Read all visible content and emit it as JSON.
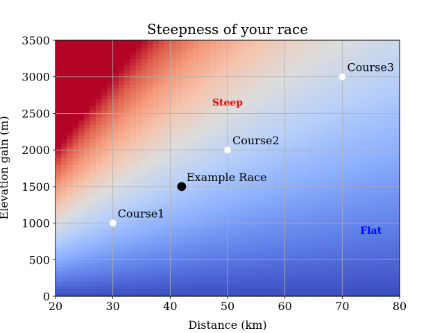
{
  "chart_data": {
    "type": "heatmap",
    "title": "Steepness of your race",
    "xlabel": "Distance (km)",
    "ylabel": "Elevation gain (m)",
    "xlim": [
      20,
      80
    ],
    "ylim": [
      0,
      3500
    ],
    "xticks": [
      20,
      30,
      40,
      50,
      60,
      70,
      80
    ],
    "yticks": [
      0,
      500,
      1000,
      1500,
      2000,
      2500,
      3000,
      3500
    ],
    "grid": true,
    "colormap": "coolwarm",
    "color_quantity": "elevation gain per km",
    "color_range": [
      0,
      100
    ],
    "points": [
      {
        "label": "Course1",
        "x": 30,
        "y": 1000,
        "color": "#ffffff"
      },
      {
        "label": "Course2",
        "x": 50,
        "y": 2000,
        "color": "#ffffff"
      },
      {
        "label": "Course3",
        "x": 70,
        "y": 3000,
        "color": "#ffffff"
      },
      {
        "label": "Example Race",
        "x": 42,
        "y": 1500,
        "color": "#000000"
      }
    ],
    "annotations": [
      {
        "text": "Steep",
        "x": 50,
        "y": 2650,
        "color": "#ff0000"
      },
      {
        "text": "Flat",
        "x": 75,
        "y": 900,
        "color": "#0000ff"
      }
    ]
  }
}
